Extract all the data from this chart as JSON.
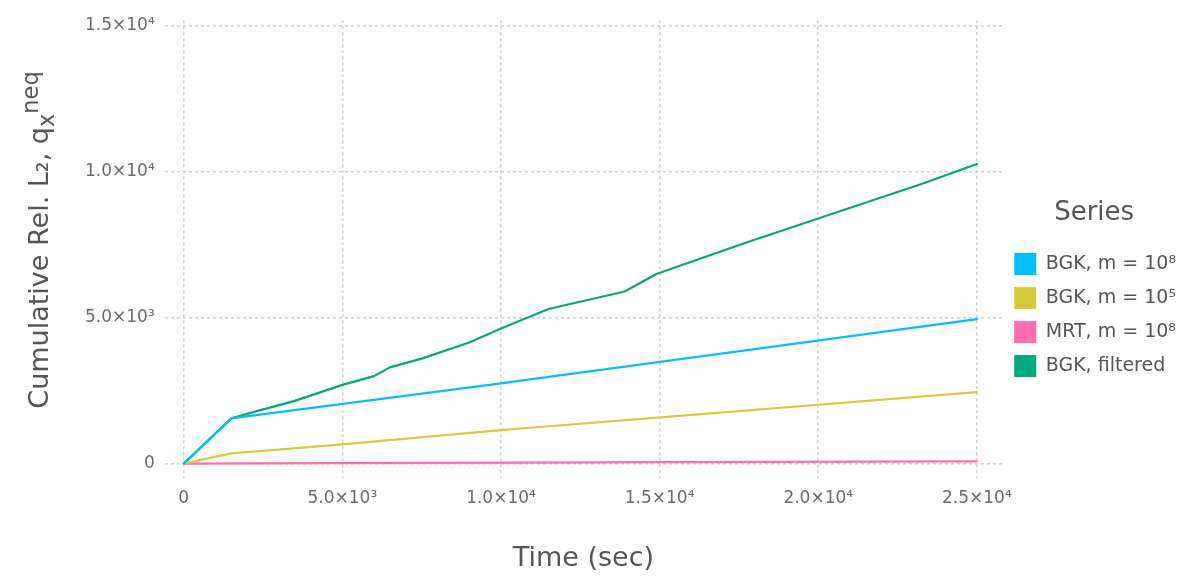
{
  "chart_data": {
    "type": "line",
    "xlabel": "Time (sec)",
    "ylabel": "Cumulative Rel. L₂, q$_{x}$$^{neq}$",
    "legend_title": "Series",
    "legend": "right",
    "grid": true,
    "marker": "none",
    "line_style": "solid",
    "xlim": [
      -600,
      25800
    ],
    "ylim": [
      -500,
      15200
    ],
    "xticks": [
      0,
      {
        "value": 5000,
        "label": "5.0×10³"
      },
      {
        "value": 10000,
        "label": "1.0×10⁴"
      },
      {
        "value": 15000,
        "label": "1.5×10⁴"
      },
      {
        "value": 20000,
        "label": "2.0×10⁴"
      },
      {
        "value": 25000,
        "label": "2.5×10⁴"
      }
    ],
    "yticks": [
      0,
      {
        "value": 5000,
        "label": "5.0×10³"
      },
      {
        "value": 10000,
        "label": "1.0×10⁴"
      },
      {
        "value": 15000,
        "label": "1.5×10⁴"
      }
    ],
    "series": [
      {
        "name": "BGK, m = 10⁸",
        "color": "#00bfff",
        "x": [
          0,
          1500,
          10000,
          25000
        ],
        "values": [
          0,
          1550,
          2750,
          4950
        ]
      },
      {
        "name": "BGK, m = 10⁵",
        "color": "#d4ca3a",
        "x": [
          0,
          1500,
          5000,
          10000,
          25000
        ],
        "values": [
          0,
          350,
          660,
          1150,
          2450
        ]
      },
      {
        "name": "MRT, m = 10⁸",
        "color": "#ff6dae",
        "x": [
          0,
          25000
        ],
        "values": [
          0,
          80
        ]
      },
      {
        "name": "BGK, filtered",
        "color": "#00a97b",
        "x": [
          0,
          1500,
          2300,
          3500,
          5000,
          6000,
          6500,
          7500,
          9000,
          10000,
          11500,
          12700,
          13900,
          14900,
          17600,
          20000,
          23300,
          25000
        ],
        "values": [
          0,
          1550,
          1800,
          2150,
          2700,
          3000,
          3300,
          3600,
          4150,
          4630,
          5300,
          5600,
          5900,
          6500,
          7530,
          8400,
          9600,
          10270
        ]
      }
    ]
  }
}
